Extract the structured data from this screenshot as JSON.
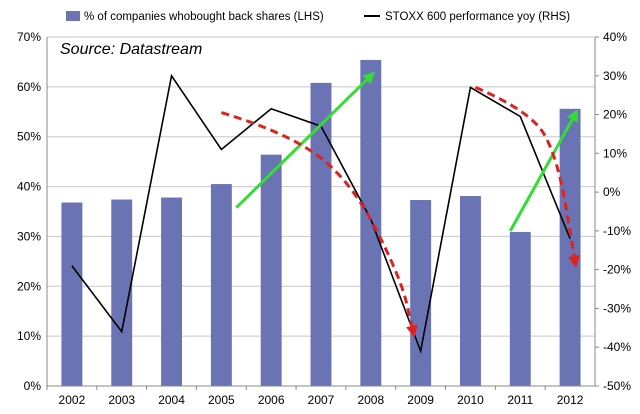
{
  "chart_data": {
    "type": "bar",
    "source_note": "Source: Datastream",
    "categories": [
      "2002",
      "2003",
      "2004",
      "2005",
      "2006",
      "2007",
      "2008",
      "2009",
      "2010",
      "2011",
      "2012"
    ],
    "series": [
      {
        "name": "% of companies whobought back shares (LHS)",
        "type": "bar",
        "axis": "left",
        "color": "#6a73b3",
        "values": [
          36.8,
          37.4,
          37.8,
          40.5,
          46.4,
          60.8,
          65.4,
          37.3,
          38.1,
          30.9,
          55.6
        ]
      },
      {
        "name": "STOXX 600 performance yoy (RHS)",
        "type": "line",
        "axis": "right",
        "color": "#000000",
        "values": [
          -19,
          -36,
          30,
          11,
          21.5,
          17,
          -7,
          -41,
          27,
          19.5,
          -12
        ]
      }
    ],
    "left_axis": {
      "min": 0,
      "max": 70,
      "ticks": [
        "0%",
        "10%",
        "20%",
        "30%",
        "40%",
        "50%",
        "60%",
        "70%"
      ]
    },
    "right_axis": {
      "min": -50,
      "max": 40,
      "ticks": [
        "-50%",
        "-40%",
        "-30%",
        "-20%",
        "-10%",
        "0%",
        "10%",
        "20%",
        "30%",
        "40%"
      ]
    },
    "grid": true,
    "legend_position": "top",
    "annotations": {
      "green_arrows": [
        {
          "from": [
            2005.3,
            -4
          ],
          "to": [
            2008.0,
            30
          ]
        },
        {
          "from": [
            2010.8,
            -10
          ],
          "to": [
            2012.1,
            20
          ]
        }
      ],
      "red_dashed_arrows": [
        {
          "points": [
            [
              2005.0,
              20.5
            ],
            [
              2006.3,
              15.5
            ],
            [
              2007.6,
              3
            ],
            [
              2008.6,
              -22
            ],
            [
              2008.85,
              -36
            ]
          ]
        },
        {
          "points": [
            [
              2010.1,
              27
            ],
            [
              2011.2,
              21
            ],
            [
              2011.75,
              9
            ],
            [
              2012.1,
              -18
            ]
          ]
        }
      ],
      "green_color": "#33dd33",
      "red_color": "#dd2222"
    }
  }
}
